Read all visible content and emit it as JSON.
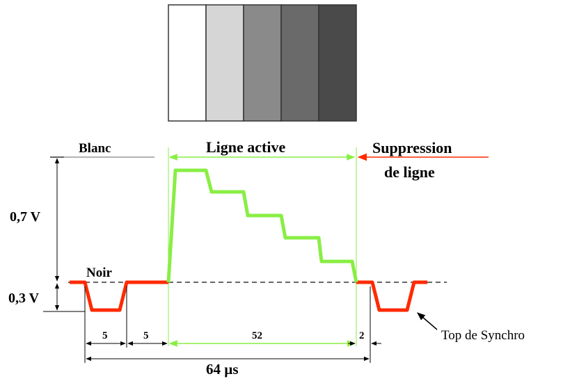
{
  "gray_bars": {
    "colors": [
      "#ffffff",
      "#d6d6d6",
      "#8a8a8a",
      "#6a6a6a",
      "#4a4a4a"
    ],
    "border_color": "#333333"
  },
  "labels": {
    "blanc": "Blanc",
    "ligne_active": "Ligne active",
    "suppression_line1": "Suppression",
    "suppression_line2": "de ligne",
    "noir": "Noir",
    "volt_07": "0,7 V",
    "volt_03": "0,3 V",
    "top_synchro": "Top de Synchro"
  },
  "timings": {
    "t1": "5",
    "t2": "5",
    "t3": "52",
    "t4": "2",
    "total": "64 µs"
  },
  "colors": {
    "sync_signal": "#ff2a00",
    "video_signal": "#88ee44",
    "active_arrow": "#88ee44",
    "suppression_arrow": "#ff2a00",
    "dashed_line": "#333333",
    "dimension_lines": "#000000"
  }
}
